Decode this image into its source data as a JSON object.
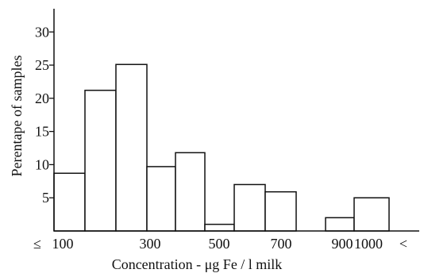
{
  "chart_data": {
    "type": "bar",
    "title": "",
    "xlabel": "Concentration - μg Fe / l milk",
    "ylabel": "Perentape of samples",
    "categories": [
      "≤100",
      "100-200",
      "200-300",
      "300-400",
      "400-500",
      "500-600",
      "600-700",
      "700-800",
      "800-900",
      "900-1000",
      "1000<"
    ],
    "values": [
      8.7,
      21.2,
      25.1,
      9.7,
      11.8,
      1.0,
      7.0,
      5.9,
      0,
      2.0,
      5.0
    ],
    "x_tick_labels": [
      "≤",
      "100",
      "300",
      "500",
      "700",
      "900",
      "1000",
      "<"
    ],
    "y_ticks": [
      "5",
      "10",
      "15",
      "20",
      "25",
      "30"
    ],
    "ylim": [
      0,
      33.5
    ],
    "grid": false,
    "colors": {
      "bar_fill": "#ffffff",
      "bar_stroke": "#111111",
      "axis": "#111111"
    }
  }
}
